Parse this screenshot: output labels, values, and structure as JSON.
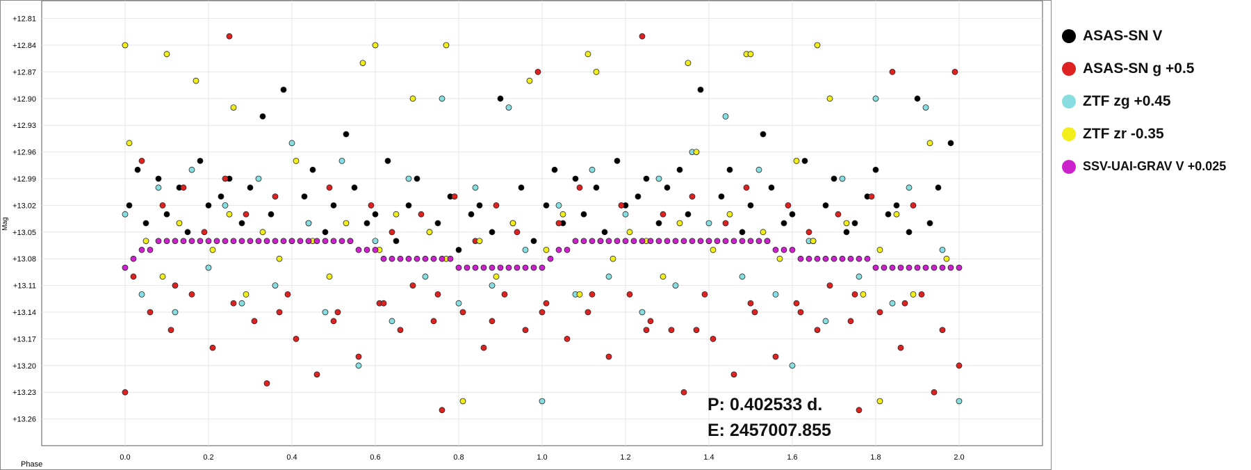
{
  "chart_data": {
    "type": "scatter",
    "xlabel": "Phase",
    "ylabel": "Mag",
    "xlim": [
      -0.2,
      2.2
    ],
    "ylim": [
      13.29,
      12.79
    ],
    "y_inverted": true,
    "grid": true,
    "x_ticks": [
      "0.0",
      "0.2",
      "0.4",
      "0.6",
      "0.8",
      "1.0",
      "1.2",
      "1.4",
      "1.6",
      "1.8",
      "2.0"
    ],
    "y_ticks": [
      "+12.81",
      "+12.84",
      "+12.87",
      "+12.90",
      "+12.93",
      "+12.96",
      "+12.99",
      "+13.02",
      "+13.05",
      "+13.08",
      "+13.11",
      "+13.14",
      "+13.17",
      "+13.20",
      "+13.23",
      "+13.26"
    ],
    "legend_position": "right",
    "series": [
      {
        "name": "ASAS-SN V",
        "color": "#000000",
        "x": [
          0.01,
          0.03,
          0.05,
          0.08,
          0.1,
          0.13,
          0.15,
          0.18,
          0.2,
          0.23,
          0.25,
          0.28,
          0.3,
          0.33,
          0.35,
          0.38,
          0.4,
          0.43,
          0.45,
          0.48,
          0.5,
          0.53,
          0.55,
          0.58,
          0.6,
          0.63,
          0.65,
          0.68,
          0.7,
          0.73,
          0.75,
          0.78,
          0.8,
          0.83,
          0.85,
          0.88,
          0.9,
          0.93,
          0.95,
          0.98,
          1.01,
          1.03,
          1.05,
          1.08,
          1.1,
          1.13,
          1.15,
          1.18,
          1.2,
          1.23,
          1.25,
          1.28,
          1.3,
          1.33,
          1.35,
          1.38,
          1.4,
          1.43,
          1.45,
          1.48,
          1.5,
          1.53,
          1.55,
          1.58,
          1.6,
          1.63,
          1.65,
          1.68,
          1.7,
          1.73,
          1.75,
          1.78,
          1.8,
          1.83,
          1.85,
          1.88,
          1.9,
          1.93,
          1.95,
          1.98
        ],
        "y": [
          13.02,
          12.98,
          13.04,
          12.99,
          13.03,
          13.0,
          13.05,
          12.97,
          13.02,
          13.01,
          12.99,
          13.04,
          13.0,
          12.92,
          13.03,
          12.89,
          13.06,
          13.01,
          12.98,
          13.05,
          13.02,
          12.94,
          13.0,
          13.04,
          13.03,
          12.97,
          13.06,
          13.02,
          12.99,
          13.05,
          13.04,
          13.01,
          13.07,
          13.03,
          13.02,
          13.05,
          12.9,
          13.04,
          13.0,
          13.06,
          13.02,
          12.98,
          13.04,
          12.99,
          13.03,
          13.0,
          13.05,
          12.97,
          13.02,
          13.01,
          12.99,
          13.04,
          13.0,
          12.98,
          13.03,
          12.89,
          13.06,
          13.01,
          12.98,
          13.05,
          13.02,
          12.94,
          13.0,
          13.04,
          13.03,
          12.97,
          13.06,
          13.02,
          12.99,
          13.05,
          13.04,
          13.01,
          12.98,
          13.03,
          13.02,
          13.05,
          12.9,
          13.04,
          13.0,
          12.95
        ]
      },
      {
        "name": "ASAS-SN g +0.5",
        "color": "#dd2222",
        "x": [
          0.0,
          0.02,
          0.04,
          0.06,
          0.09,
          0.11,
          0.14,
          0.16,
          0.19,
          0.21,
          0.24,
          0.26,
          0.29,
          0.31,
          0.34,
          0.36,
          0.39,
          0.41,
          0.44,
          0.46,
          0.49,
          0.51,
          0.54,
          0.56,
          0.59,
          0.61,
          0.64,
          0.66,
          0.69,
          0.71,
          0.74,
          0.76,
          0.79,
          0.81,
          0.84,
          0.86,
          0.89,
          0.91,
          0.94,
          0.96,
          0.99,
          1.01,
          1.04,
          1.06,
          1.09,
          1.11,
          1.14,
          1.16,
          1.19,
          1.21,
          1.24,
          1.26,
          1.29,
          1.31,
          1.34,
          1.36,
          1.39,
          1.41,
          1.44,
          1.46,
          1.49,
          1.51,
          1.54,
          1.56,
          1.59,
          1.61,
          1.64,
          1.66,
          1.69,
          1.71,
          1.74,
          1.76,
          1.79,
          1.81,
          1.84,
          1.86,
          1.89,
          1.91,
          1.94,
          1.96,
          1.99,
          0.12,
          0.37,
          0.62,
          0.88,
          1.12,
          1.37,
          1.62,
          1.87,
          0.25,
          0.5,
          0.75,
          1.0,
          1.25,
          1.5,
          1.75,
          2.0
        ],
        "y": [
          13.23,
          13.1,
          12.97,
          13.14,
          13.02,
          13.16,
          13.0,
          13.12,
          13.05,
          13.18,
          12.99,
          13.13,
          13.03,
          13.15,
          13.22,
          13.01,
          13.12,
          13.17,
          13.04,
          13.21,
          13.0,
          13.14,
          13.06,
          13.19,
          13.02,
          13.13,
          13.05,
          13.16,
          13.11,
          13.03,
          13.15,
          13.25,
          13.01,
          13.14,
          13.06,
          13.18,
          13.02,
          13.12,
          13.05,
          13.16,
          12.87,
          13.13,
          13.04,
          13.17,
          13.0,
          13.14,
          13.06,
          13.19,
          13.02,
          13.12,
          12.83,
          13.15,
          13.03,
          13.16,
          13.23,
          13.01,
          13.12,
          13.17,
          13.04,
          13.21,
          13.0,
          13.14,
          13.06,
          13.19,
          13.02,
          13.13,
          13.05,
          13.16,
          13.11,
          13.03,
          13.15,
          13.25,
          13.01,
          13.14,
          12.87,
          13.18,
          13.02,
          13.12,
          13.23,
          13.16,
          12.87,
          13.11,
          13.14,
          13.13,
          13.15,
          13.12,
          13.16,
          13.14,
          13.13,
          12.83,
          13.15,
          13.12,
          13.14,
          13.16,
          13.13,
          13.12,
          13.2
        ]
      },
      {
        "name": "ZTF zg +0.45",
        "color": "#88dde0",
        "x": [
          0.0,
          0.04,
          0.08,
          0.12,
          0.16,
          0.2,
          0.24,
          0.28,
          0.32,
          0.36,
          0.4,
          0.44,
          0.48,
          0.52,
          0.56,
          0.6,
          0.64,
          0.68,
          0.72,
          0.76,
          0.8,
          0.84,
          0.88,
          0.92,
          0.96,
          1.0,
          1.04,
          1.08,
          1.12,
          1.16,
          1.2,
          1.24,
          1.28,
          1.32,
          1.36,
          1.4,
          1.44,
          1.48,
          1.52,
          1.56,
          1.6,
          1.64,
          1.68,
          1.72,
          1.76,
          1.8,
          1.84,
          1.88,
          1.92,
          1.96,
          2.0
        ],
        "y": [
          13.03,
          13.12,
          13.0,
          13.14,
          12.98,
          13.09,
          13.02,
          13.13,
          12.99,
          13.11,
          12.95,
          13.04,
          13.14,
          12.97,
          13.2,
          13.06,
          13.15,
          12.99,
          13.1,
          12.9,
          13.13,
          13.0,
          13.11,
          12.91,
          13.07,
          13.24,
          13.02,
          13.12,
          12.98,
          13.1,
          13.03,
          13.14,
          12.99,
          13.11,
          12.96,
          13.04,
          12.92,
          13.1,
          12.98,
          13.12,
          13.2,
          13.06,
          13.15,
          12.99,
          13.1,
          12.9,
          13.13,
          13.0,
          12.91,
          13.07,
          13.24
        ]
      },
      {
        "name": "ZTF zr -0.35",
        "color": "#f2ee1a",
        "x": [
          0.01,
          0.05,
          0.09,
          0.13,
          0.17,
          0.21,
          0.25,
          0.29,
          0.33,
          0.37,
          0.41,
          0.45,
          0.49,
          0.53,
          0.57,
          0.61,
          0.65,
          0.69,
          0.73,
          0.77,
          0.81,
          0.85,
          0.89,
          0.93,
          0.97,
          1.01,
          1.05,
          1.09,
          1.13,
          1.17,
          1.21,
          1.25,
          1.29,
          1.33,
          1.37,
          1.41,
          1.45,
          1.49,
          1.53,
          1.57,
          1.61,
          1.65,
          1.69,
          1.73,
          1.77,
          1.81,
          1.85,
          1.89,
          1.93,
          1.97,
          0.0,
          0.1,
          0.26,
          0.6,
          0.77,
          1.11,
          1.35,
          1.5,
          1.66,
          1.81
        ],
        "y": [
          12.95,
          13.06,
          13.1,
          13.04,
          12.88,
          13.07,
          13.03,
          13.12,
          13.05,
          13.08,
          12.97,
          13.06,
          13.1,
          13.04,
          12.86,
          13.07,
          13.03,
          12.9,
          13.05,
          13.08,
          13.24,
          13.06,
          13.1,
          13.04,
          12.88,
          13.07,
          13.03,
          13.12,
          12.87,
          13.08,
          13.05,
          13.06,
          13.1,
          13.04,
          12.96,
          13.07,
          13.03,
          12.85,
          13.05,
          13.08,
          12.97,
          13.06,
          12.9,
          13.04,
          13.12,
          13.07,
          13.03,
          13.12,
          12.95,
          13.08,
          12.84,
          12.85,
          12.91,
          12.84,
          12.84,
          12.85,
          12.86,
          12.85,
          12.84,
          13.24
        ]
      },
      {
        "name": "SSV-UAI-GRAV V +0.025",
        "color": "#cc22cc",
        "x": [
          0.0,
          0.02,
          0.04,
          0.06,
          0.08,
          0.1,
          0.12,
          0.14,
          0.16,
          0.18,
          0.2,
          0.22,
          0.24,
          0.26,
          0.28,
          0.3,
          0.32,
          0.34,
          0.36,
          0.38,
          0.4,
          0.42,
          0.44,
          0.46,
          0.48,
          0.5,
          0.52,
          0.54,
          0.56,
          0.58,
          0.6,
          0.62,
          0.64,
          0.66,
          0.68,
          0.7,
          0.72,
          0.74,
          0.76,
          0.78,
          0.8,
          0.82,
          0.84,
          0.86,
          0.88,
          0.9,
          0.92,
          0.94,
          0.96,
          0.98,
          1.0,
          1.02,
          1.04,
          1.06,
          1.08,
          1.1,
          1.12,
          1.14,
          1.16,
          1.18,
          1.2,
          1.22,
          1.24,
          1.26,
          1.28,
          1.3,
          1.32,
          1.34,
          1.36,
          1.38,
          1.4,
          1.42,
          1.44,
          1.46,
          1.48,
          1.5,
          1.52,
          1.54,
          1.56,
          1.58,
          1.6,
          1.62,
          1.64,
          1.66,
          1.68,
          1.7,
          1.72,
          1.74,
          1.76,
          1.78,
          1.8,
          1.82,
          1.84,
          1.86,
          1.88,
          1.9,
          1.92,
          1.94,
          1.96,
          1.98,
          2.0
        ],
        "y": [
          13.09,
          13.08,
          13.07,
          13.07,
          13.06,
          13.06,
          13.06,
          13.06,
          13.06,
          13.06,
          13.06,
          13.06,
          13.06,
          13.06,
          13.06,
          13.06,
          13.06,
          13.06,
          13.06,
          13.06,
          13.06,
          13.06,
          13.06,
          13.06,
          13.06,
          13.06,
          13.06,
          13.06,
          13.07,
          13.07,
          13.07,
          13.08,
          13.08,
          13.08,
          13.08,
          13.08,
          13.08,
          13.08,
          13.08,
          13.08,
          13.09,
          13.09,
          13.09,
          13.09,
          13.09,
          13.09,
          13.09,
          13.09,
          13.09,
          13.09,
          13.09,
          13.08,
          13.07,
          13.07,
          13.06,
          13.06,
          13.06,
          13.06,
          13.06,
          13.06,
          13.06,
          13.06,
          13.06,
          13.06,
          13.06,
          13.06,
          13.06,
          13.06,
          13.06,
          13.06,
          13.06,
          13.06,
          13.06,
          13.06,
          13.06,
          13.06,
          13.06,
          13.06,
          13.07,
          13.07,
          13.07,
          13.08,
          13.08,
          13.08,
          13.08,
          13.08,
          13.08,
          13.08,
          13.08,
          13.08,
          13.09,
          13.09,
          13.09,
          13.09,
          13.09,
          13.09,
          13.09,
          13.09,
          13.09,
          13.09,
          13.09
        ]
      }
    ],
    "annotations": {
      "period": "P: 0.402533 d.",
      "epoch": "E: 2457007.855"
    }
  }
}
